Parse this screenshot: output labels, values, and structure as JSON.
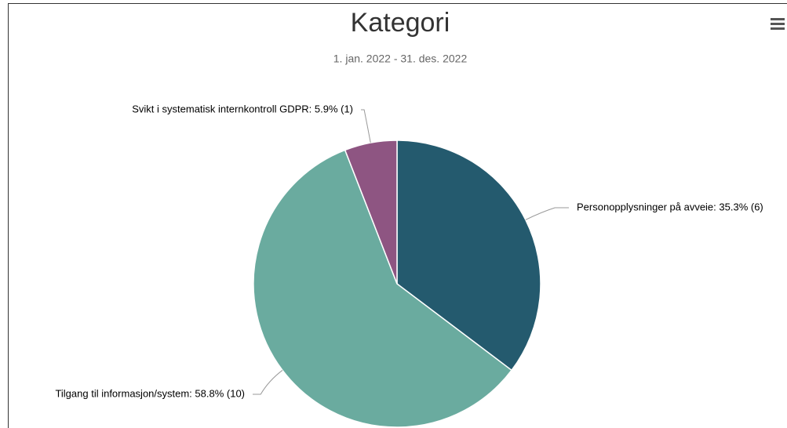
{
  "chart_data": {
    "type": "pie",
    "title": "Kategori",
    "subtitle": "1. jan. 2022 - 31. des. 2022",
    "values": [
      35.3,
      58.8,
      5.9
    ],
    "value_labels": [
      "Personopplysninger på avveie: 35.3% (6)",
      "Tilgang til informasjon/system: 58.8% (10)",
      "Svikt i systematisk internkontroll GDPR: 5.9% (1)"
    ],
    "colors": [
      "#245a6e",
      "#6aab9f",
      "#8e5582"
    ]
  }
}
